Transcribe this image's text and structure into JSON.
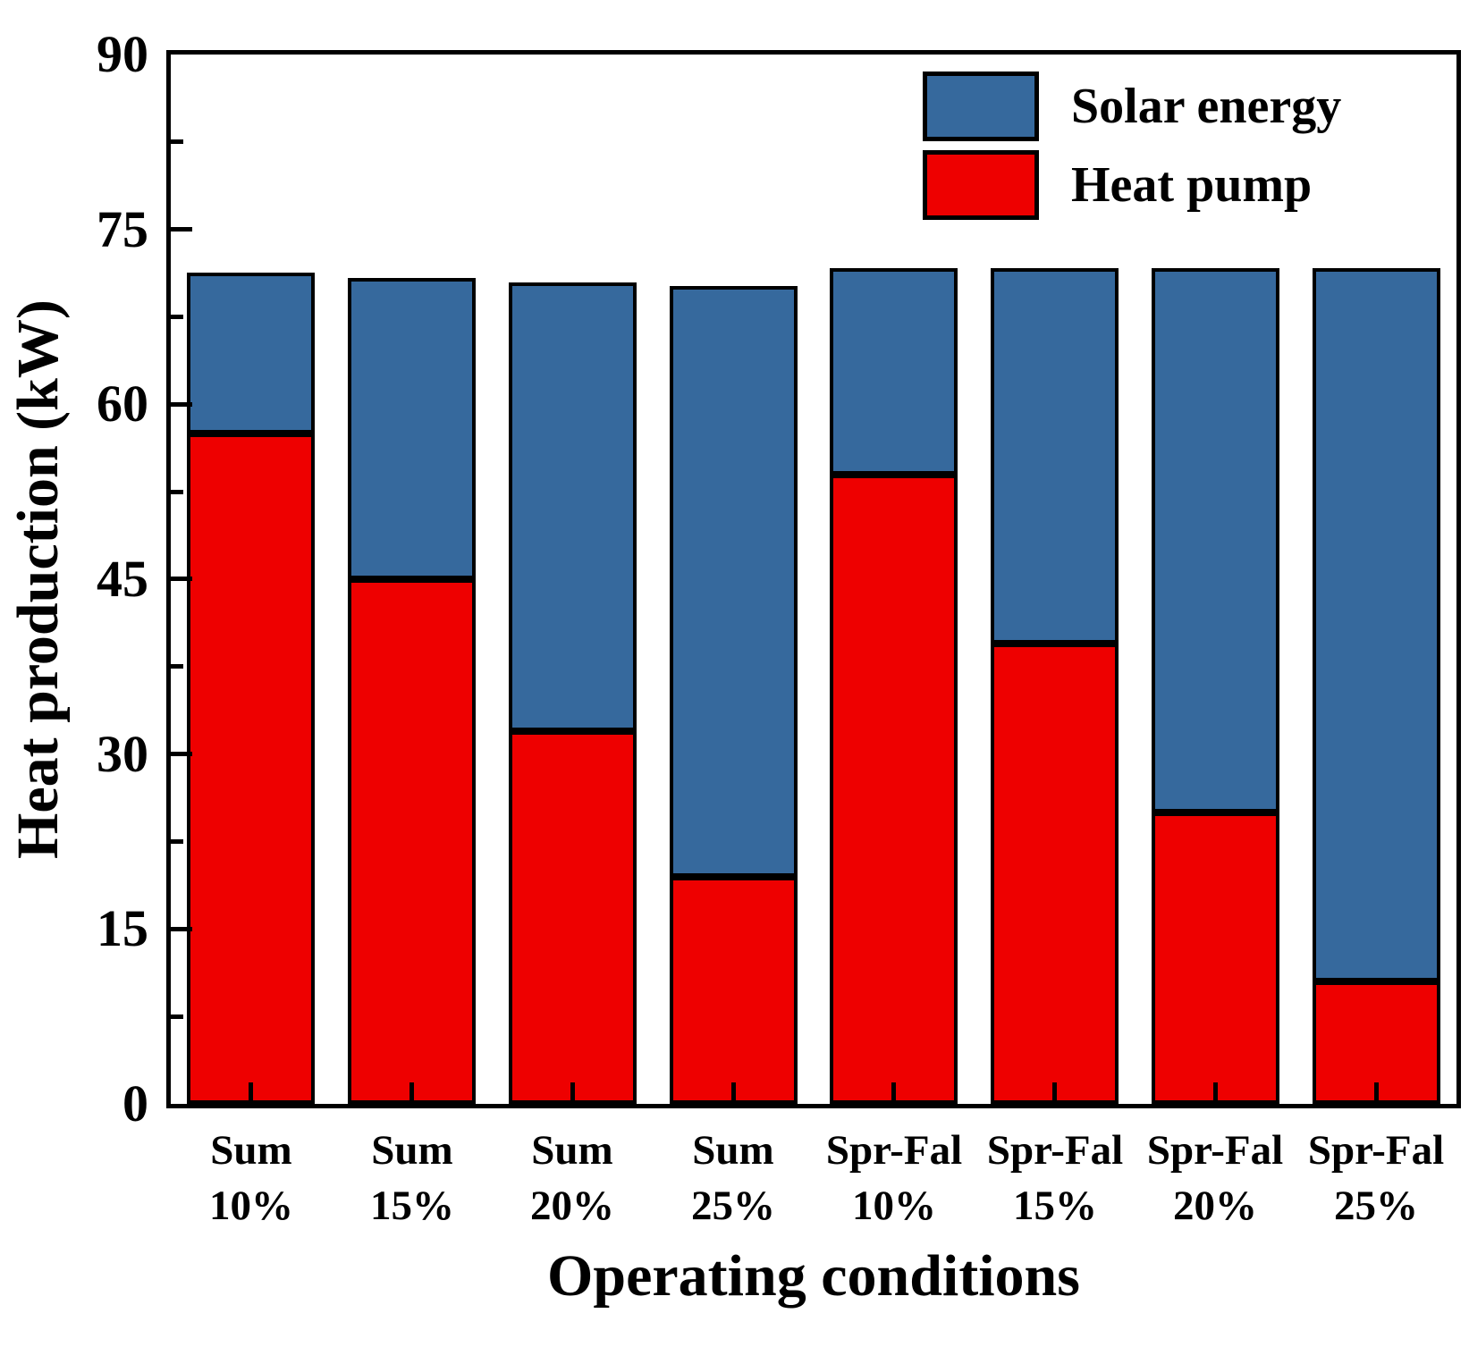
{
  "chart_data": {
    "type": "bar",
    "stacked": true,
    "title": "",
    "xlabel": "Operating conditions",
    "ylabel": "Heat production (kW)",
    "ylim": [
      0,
      90
    ],
    "y_major_ticks": [
      0,
      15,
      30,
      45,
      60,
      75,
      90
    ],
    "y_minor_step": 7.5,
    "grid": false,
    "legend_position": "top-right-inside",
    "categories": [
      {
        "line1": "Sum",
        "line2": "10%"
      },
      {
        "line1": "Sum",
        "line2": "15%"
      },
      {
        "line1": "Sum",
        "line2": "20%"
      },
      {
        "line1": "Sum",
        "line2": "25%"
      },
      {
        "line1": "Spr-Fal",
        "line2": "10%"
      },
      {
        "line1": "Spr-Fal",
        "line2": "15%"
      },
      {
        "line1": "Spr-Fal",
        "line2": "20%"
      },
      {
        "line1": "Spr-Fal",
        "line2": "25%"
      }
    ],
    "series": [
      {
        "name": "Heat pump",
        "color": "#EE0000",
        "values": [
          57.5,
          45,
          32,
          19.5,
          54,
          39.5,
          25,
          10.5
        ]
      },
      {
        "name": "Solar energy",
        "color": "#36699D",
        "values": [
          13.8,
          25.8,
          38.5,
          50.7,
          17.7,
          32.2,
          46.7,
          61.2
        ]
      }
    ],
    "bar_totals": [
      71.3,
      70.8,
      70.5,
      70.2,
      71.7,
      71.7,
      71.7,
      71.7
    ],
    "legend": [
      {
        "label": "Solar energy",
        "color": "#36699D"
      },
      {
        "label": "Heat pump",
        "color": "#EE0000"
      }
    ],
    "axis_color": "#000000"
  }
}
